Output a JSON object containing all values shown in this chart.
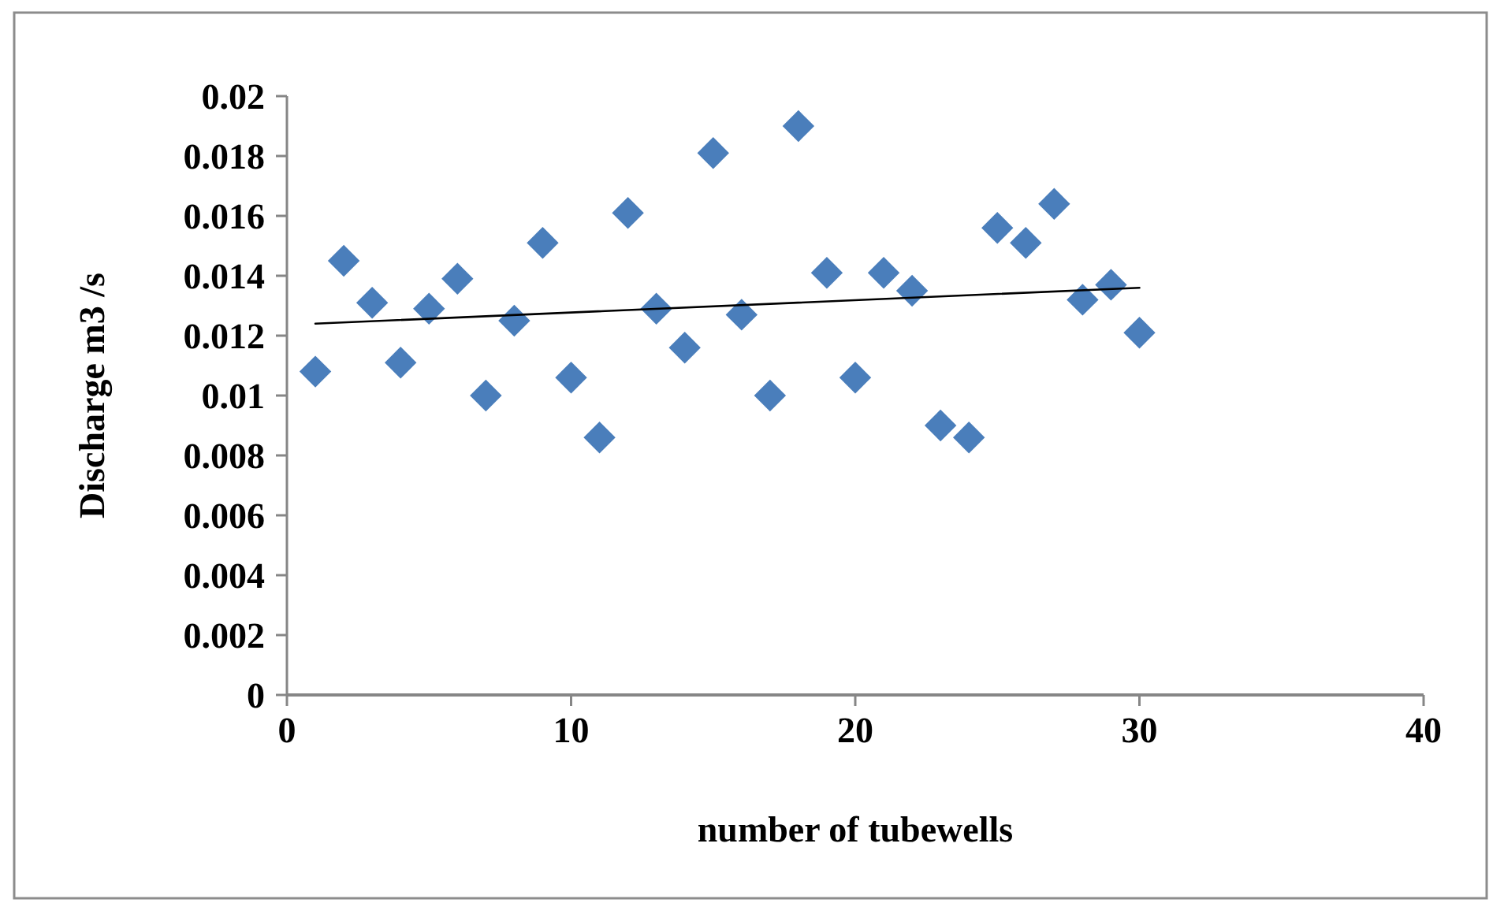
{
  "chart_data": {
    "type": "scatter",
    "xlabel": "number of tubewells",
    "ylabel": "Discharge m3 /s",
    "xlim": [
      0,
      40
    ],
    "xticks": [
      0,
      10,
      20,
      30,
      40
    ],
    "ylim": [
      0,
      0.02
    ],
    "yticks": [
      {
        "value": 0,
        "label": "0"
      },
      {
        "value": 0.002,
        "label": "0.002"
      },
      {
        "value": 0.004,
        "label": "0.004"
      },
      {
        "value": 0.006,
        "label": "0.006"
      },
      {
        "value": 0.008,
        "label": "0.008"
      },
      {
        "value": 0.01,
        "label": "0.01"
      },
      {
        "value": 0.012,
        "label": "0.012"
      },
      {
        "value": 0.014,
        "label": "0.014"
      },
      {
        "value": 0.016,
        "label": "0.016"
      },
      {
        "value": 0.018,
        "label": "0.018"
      },
      {
        "value": 0.02,
        "label": "0.02"
      }
    ],
    "grid": false,
    "series": [
      {
        "color": "#4a7ebb",
        "marker": "diamond",
        "x": [
          1,
          2,
          3,
          4,
          5,
          6,
          7,
          8,
          9,
          10,
          11,
          12,
          13,
          14,
          15,
          16,
          17,
          18,
          19,
          20,
          21,
          22,
          23,
          24,
          25,
          26,
          27,
          28,
          29,
          30
        ],
        "values": [
          0.0108,
          0.0145,
          0.0131,
          0.0111,
          0.0129,
          0.0139,
          0.01,
          0.0125,
          0.0151,
          0.0106,
          0.0086,
          0.0161,
          0.0129,
          0.0116,
          0.0181,
          0.0127,
          0.01,
          0.019,
          0.0141,
          0.0106,
          0.0141,
          0.0135,
          0.009,
          0.0086,
          0.0156,
          0.0151,
          0.0164,
          0.0132,
          0.0137,
          0.0121
        ]
      },
      {
        "type": "line",
        "color": "#000000",
        "marker": "none",
        "line_style": "solid",
        "x": [
          1,
          30
        ],
        "values": [
          0.0124,
          0.0136
        ]
      }
    ]
  }
}
